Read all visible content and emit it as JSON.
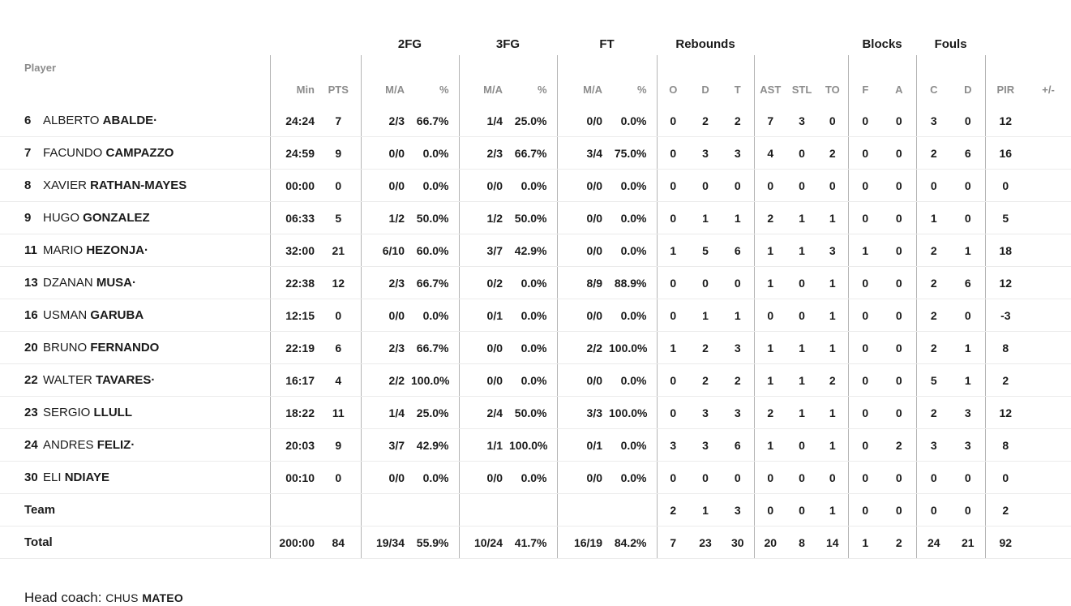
{
  "colors": {
    "background": "#ffffff",
    "text": "#1a1a1a",
    "muted_header": "#8c8c8c",
    "divider_line": "#b4b4b4",
    "row_separator": "#ebebeb"
  },
  "table": {
    "group_labels": {
      "fg2": "2FG",
      "fg3": "3FG",
      "ft": "FT",
      "reb": "Rebounds",
      "blocks": "Blocks",
      "fouls": "Fouls"
    },
    "column_headers": [
      "Player",
      "Min",
      "PTS",
      "M/A",
      "%",
      "M/A",
      "%",
      "M/A",
      "%",
      "O",
      "D",
      "T",
      "AST",
      "STL",
      "TO",
      "F",
      "A",
      "C",
      "D",
      "PIR",
      "+/-"
    ],
    "rows": [
      {
        "type": "player",
        "number": "6",
        "first": "ALBERTO",
        "last": "ABALDE",
        "starter": true,
        "stats": [
          "24:24",
          "7",
          "2/3",
          "66.7%",
          "1/4",
          "25.0%",
          "0/0",
          "0.0%",
          "0",
          "2",
          "2",
          "7",
          "3",
          "0",
          "0",
          "0",
          "3",
          "0",
          "12",
          ""
        ]
      },
      {
        "type": "player",
        "number": "7",
        "first": "FACUNDO",
        "last": "CAMPAZZO",
        "starter": false,
        "stats": [
          "24:59",
          "9",
          "0/0",
          "0.0%",
          "2/3",
          "66.7%",
          "3/4",
          "75.0%",
          "0",
          "3",
          "3",
          "4",
          "0",
          "2",
          "0",
          "0",
          "2",
          "6",
          "16",
          ""
        ]
      },
      {
        "type": "player",
        "number": "8",
        "first": "XAVIER",
        "last": "RATHAN-MAYES",
        "starter": false,
        "stats": [
          "00:00",
          "0",
          "0/0",
          "0.0%",
          "0/0",
          "0.0%",
          "0/0",
          "0.0%",
          "0",
          "0",
          "0",
          "0",
          "0",
          "0",
          "0",
          "0",
          "0",
          "0",
          "0",
          ""
        ]
      },
      {
        "type": "player",
        "number": "9",
        "first": "HUGO",
        "last": "GONZALEZ",
        "starter": false,
        "stats": [
          "06:33",
          "5",
          "1/2",
          "50.0%",
          "1/2",
          "50.0%",
          "0/0",
          "0.0%",
          "0",
          "1",
          "1",
          "2",
          "1",
          "1",
          "0",
          "0",
          "1",
          "0",
          "5",
          ""
        ]
      },
      {
        "type": "player",
        "number": "11",
        "first": "MARIO",
        "last": "HEZONJA",
        "starter": true,
        "stats": [
          "32:00",
          "21",
          "6/10",
          "60.0%",
          "3/7",
          "42.9%",
          "0/0",
          "0.0%",
          "1",
          "5",
          "6",
          "1",
          "1",
          "3",
          "1",
          "0",
          "2",
          "1",
          "18",
          ""
        ]
      },
      {
        "type": "player",
        "number": "13",
        "first": "DZANAN",
        "last": "MUSA",
        "starter": true,
        "stats": [
          "22:38",
          "12",
          "2/3",
          "66.7%",
          "0/2",
          "0.0%",
          "8/9",
          "88.9%",
          "0",
          "0",
          "0",
          "1",
          "0",
          "1",
          "0",
          "0",
          "2",
          "6",
          "12",
          ""
        ]
      },
      {
        "type": "player",
        "number": "16",
        "first": "USMAN",
        "last": "GARUBA",
        "starter": false,
        "stats": [
          "12:15",
          "0",
          "0/0",
          "0.0%",
          "0/1",
          "0.0%",
          "0/0",
          "0.0%",
          "0",
          "1",
          "1",
          "0",
          "0",
          "1",
          "0",
          "0",
          "2",
          "0",
          "-3",
          ""
        ]
      },
      {
        "type": "player",
        "number": "20",
        "first": "BRUNO",
        "last": "FERNANDO",
        "starter": false,
        "stats": [
          "22:19",
          "6",
          "2/3",
          "66.7%",
          "0/0",
          "0.0%",
          "2/2",
          "100.0%",
          "1",
          "2",
          "3",
          "1",
          "1",
          "1",
          "0",
          "0",
          "2",
          "1",
          "8",
          ""
        ]
      },
      {
        "type": "player",
        "number": "22",
        "first": "WALTER",
        "last": "TAVARES",
        "starter": true,
        "stats": [
          "16:17",
          "4",
          "2/2",
          "100.0%",
          "0/0",
          "0.0%",
          "0/0",
          "0.0%",
          "0",
          "2",
          "2",
          "1",
          "1",
          "2",
          "0",
          "0",
          "5",
          "1",
          "2",
          ""
        ]
      },
      {
        "type": "player",
        "number": "23",
        "first": "SERGIO",
        "last": "LLULL",
        "starter": false,
        "stats": [
          "18:22",
          "11",
          "1/4",
          "25.0%",
          "2/4",
          "50.0%",
          "3/3",
          "100.0%",
          "0",
          "3",
          "3",
          "2",
          "1",
          "1",
          "0",
          "0",
          "2",
          "3",
          "12",
          ""
        ]
      },
      {
        "type": "player",
        "number": "24",
        "first": "ANDRES",
        "last": "FELIZ",
        "starter": true,
        "stats": [
          "20:03",
          "9",
          "3/7",
          "42.9%",
          "1/1",
          "100.0%",
          "0/1",
          "0.0%",
          "3",
          "3",
          "6",
          "1",
          "0",
          "1",
          "0",
          "2",
          "3",
          "3",
          "8",
          ""
        ]
      },
      {
        "type": "player",
        "number": "30",
        "first": "ELI",
        "last": "NDIAYE",
        "starter": false,
        "stats": [
          "00:10",
          "0",
          "0/0",
          "0.0%",
          "0/0",
          "0.0%",
          "0/0",
          "0.0%",
          "0",
          "0",
          "0",
          "0",
          "0",
          "0",
          "0",
          "0",
          "0",
          "0",
          "0",
          ""
        ]
      },
      {
        "type": "team",
        "label": "Team",
        "stats": [
          "",
          "",
          "",
          "",
          "",
          "",
          "",
          "",
          "2",
          "1",
          "3",
          "0",
          "0",
          "1",
          "0",
          "0",
          "0",
          "0",
          "2",
          ""
        ]
      },
      {
        "type": "total",
        "label": "Total",
        "stats": [
          "200:00",
          "84",
          "19/34",
          "55.9%",
          "10/24",
          "41.7%",
          "16/19",
          "84.2%",
          "7",
          "23",
          "30",
          "20",
          "8",
          "14",
          "1",
          "2",
          "24",
          "21",
          "92",
          ""
        ]
      }
    ],
    "starter_dot": "·"
  },
  "footer": {
    "head_coach_label": "Head coach:",
    "coach_first": "CHUS",
    "coach_last": "MATEO"
  }
}
